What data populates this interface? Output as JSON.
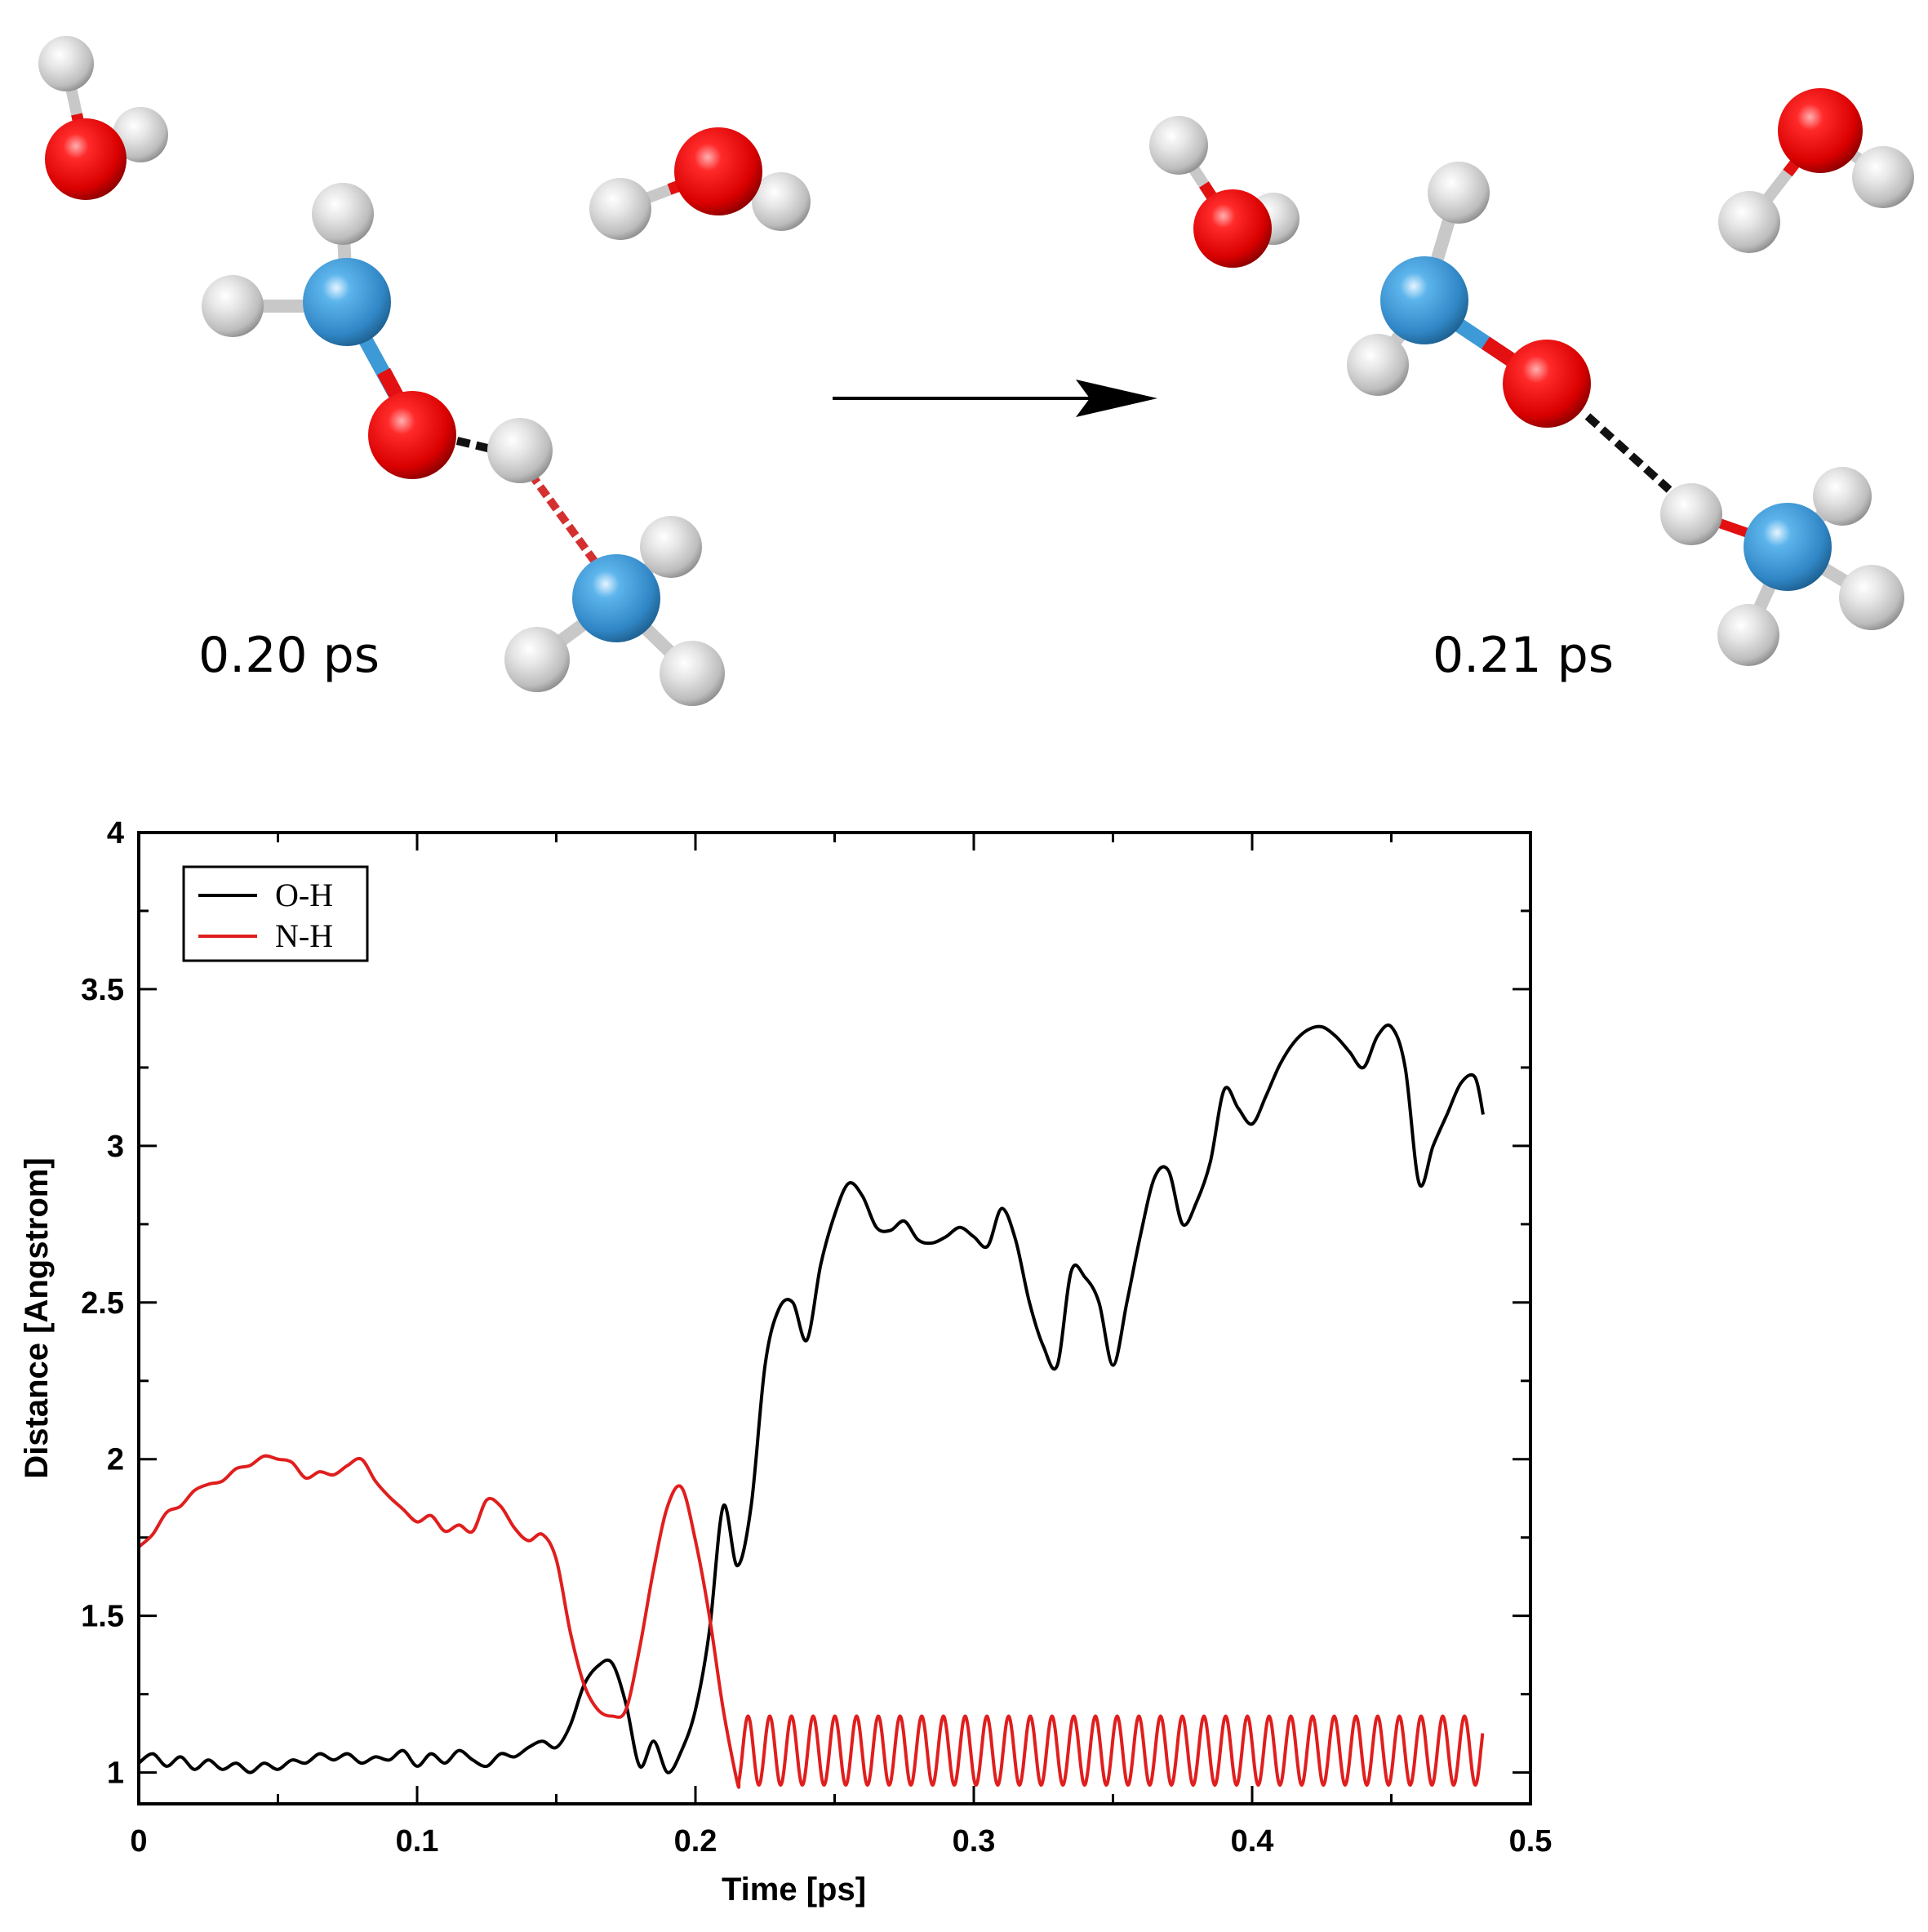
{
  "scene": {
    "left_frame_time": "0.20 ps",
    "right_frame_time": "0.21 ps",
    "colors": {
      "oxygen": "#e21010",
      "nitrogen": "#3d9ad6",
      "hydrogen": "#d8d8d8",
      "arrow": "#000000"
    }
  },
  "chart_data": {
    "type": "line",
    "title": "",
    "xlabel": "Time [ps]",
    "ylabel": "Distance [Angstrom]",
    "xlim": [
      0,
      0.5
    ],
    "ylim": [
      0.9,
      4
    ],
    "xticks": [
      0,
      0.1,
      0.2,
      0.3,
      0.4,
      0.5
    ],
    "xtick_labels": [
      "0",
      "0.1",
      "0.2",
      "0.3",
      "0.4",
      "0.5"
    ],
    "yticks": [
      1,
      1.5,
      2,
      2.5,
      3,
      3.5,
      4
    ],
    "ytick_labels": [
      "1",
      "1.5",
      "2",
      "2.5",
      "3",
      "3.5",
      "4"
    ],
    "legend_position": "top-left",
    "grid": false,
    "series": [
      {
        "name": "O-H",
        "color": "#000000",
        "x": [
          0,
          0.005,
          0.01,
          0.015,
          0.02,
          0.025,
          0.03,
          0.035,
          0.04,
          0.045,
          0.05,
          0.055,
          0.06,
          0.065,
          0.07,
          0.075,
          0.08,
          0.085,
          0.09,
          0.095,
          0.1,
          0.105,
          0.11,
          0.115,
          0.12,
          0.125,
          0.13,
          0.135,
          0.14,
          0.145,
          0.15,
          0.155,
          0.16,
          0.165,
          0.17,
          0.175,
          0.18,
          0.185,
          0.19,
          0.195,
          0.2,
          0.205,
          0.21,
          0.215,
          0.22,
          0.225,
          0.23,
          0.235,
          0.24,
          0.245,
          0.25,
          0.255,
          0.26,
          0.265,
          0.27,
          0.275,
          0.28,
          0.285,
          0.29,
          0.295,
          0.3,
          0.305,
          0.31,
          0.315,
          0.32,
          0.325,
          0.33,
          0.335,
          0.34,
          0.345,
          0.35,
          0.355,
          0.36,
          0.365,
          0.37,
          0.375,
          0.38,
          0.385,
          0.39,
          0.395,
          0.4,
          0.405,
          0.41,
          0.415,
          0.42,
          0.425,
          0.43,
          0.435,
          0.44,
          0.445,
          0.45,
          0.455,
          0.46,
          0.465,
          0.47,
          0.475,
          0.48,
          0.483
        ],
        "y": [
          1.03,
          1.06,
          1.02,
          1.05,
          1.01,
          1.04,
          1.01,
          1.03,
          1.0,
          1.03,
          1.01,
          1.04,
          1.03,
          1.06,
          1.04,
          1.06,
          1.03,
          1.05,
          1.04,
          1.07,
          1.02,
          1.06,
          1.03,
          1.07,
          1.04,
          1.02,
          1.06,
          1.05,
          1.08,
          1.1,
          1.08,
          1.15,
          1.28,
          1.34,
          1.35,
          1.22,
          1.02,
          1.1,
          1.0,
          1.07,
          1.2,
          1.45,
          1.85,
          1.66,
          1.85,
          2.3,
          2.48,
          2.5,
          2.38,
          2.62,
          2.78,
          2.88,
          2.84,
          2.74,
          2.73,
          2.76,
          2.7,
          2.69,
          2.71,
          2.74,
          2.71,
          2.68,
          2.8,
          2.7,
          2.5,
          2.36,
          2.3,
          2.6,
          2.58,
          2.5,
          2.3,
          2.5,
          2.72,
          2.9,
          2.92,
          2.75,
          2.82,
          2.95,
          3.18,
          3.12,
          3.07,
          3.16,
          3.26,
          3.33,
          3.37,
          3.38,
          3.35,
          3.3,
          3.25,
          3.35,
          3.38,
          3.25,
          2.88,
          3.0,
          3.1,
          3.2,
          3.22,
          3.1
        ]
      },
      {
        "name": "N-H",
        "color": "#e01e1e",
        "x": [
          0,
          0.005,
          0.01,
          0.015,
          0.02,
          0.025,
          0.03,
          0.035,
          0.04,
          0.045,
          0.05,
          0.055,
          0.06,
          0.065,
          0.07,
          0.075,
          0.08,
          0.085,
          0.09,
          0.095,
          0.1,
          0.105,
          0.11,
          0.115,
          0.12,
          0.125,
          0.13,
          0.135,
          0.14,
          0.145,
          0.15,
          0.155,
          0.16,
          0.165,
          0.17,
          0.175,
          0.18,
          0.185,
          0.19,
          0.195,
          0.2,
          0.205,
          0.21,
          0.215
        ],
        "y": [
          1.72,
          1.76,
          1.83,
          1.85,
          1.9,
          1.92,
          1.93,
          1.97,
          1.98,
          2.01,
          2.0,
          1.99,
          1.94,
          1.96,
          1.95,
          1.98,
          2.0,
          1.93,
          1.88,
          1.84,
          1.8,
          1.82,
          1.77,
          1.79,
          1.77,
          1.87,
          1.85,
          1.78,
          1.74,
          1.76,
          1.68,
          1.45,
          1.28,
          1.2,
          1.18,
          1.2,
          1.4,
          1.65,
          1.85,
          1.91,
          1.74,
          1.5,
          1.2,
          0.97
        ]
      }
    ],
    "oscillation": {
      "series": "N-H",
      "x_start": 0.215,
      "x_end": 0.483,
      "min": 0.96,
      "max": 1.18,
      "period": 0.0078
    }
  }
}
